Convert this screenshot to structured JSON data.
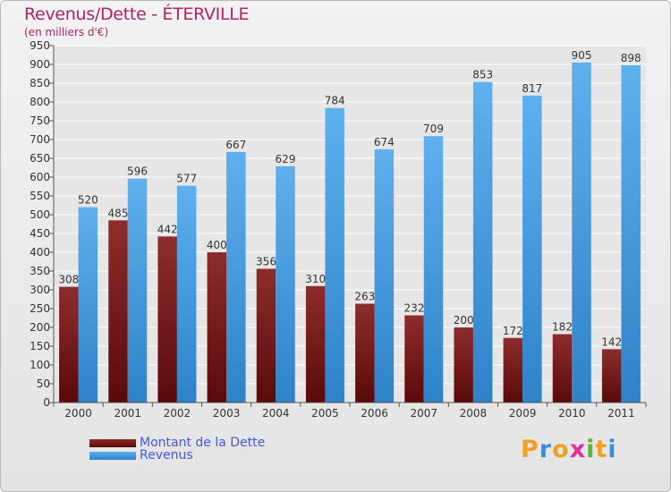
{
  "chart_data": {
    "type": "bar",
    "title": "Revenus/Dette - ÉTERVILLE",
    "subtitle": "(en milliers d'€)",
    "categories": [
      "2000",
      "2001",
      "2002",
      "2003",
      "2004",
      "2005",
      "2006",
      "2007",
      "2008",
      "2009",
      "2010",
      "2011"
    ],
    "series": [
      {
        "name": "Montant de la Dette",
        "color": "#7b1a1a",
        "values": [
          308,
          485,
          442,
          400,
          356,
          310,
          263,
          232,
          200,
          172,
          182,
          142
        ]
      },
      {
        "name": "Revenus",
        "color": "#3f9be0",
        "values": [
          520,
          596,
          577,
          667,
          629,
          784,
          674,
          709,
          853,
          817,
          905,
          898
        ]
      }
    ],
    "ylim": [
      0,
      950
    ],
    "ytick_step": 50,
    "grid": true,
    "legend_position": "bottom-left"
  },
  "logo": {
    "letters": [
      {
        "char": "P",
        "color": "#f0a020"
      },
      {
        "char": "r",
        "color": "#3a8fd8"
      },
      {
        "char": "o",
        "color": "#f0a020"
      },
      {
        "char": "x",
        "color": "#e0309a"
      },
      {
        "char": "i",
        "color": "#58b830"
      },
      {
        "char": "t",
        "color": "#f0a020"
      },
      {
        "char": "i",
        "color": "#3a8fd8"
      }
    ]
  }
}
